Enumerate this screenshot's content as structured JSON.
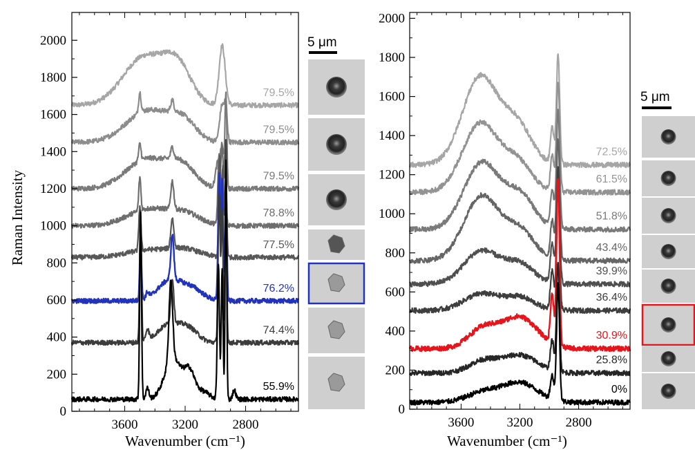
{
  "chart_data": [
    {
      "type": "line",
      "panel": "left",
      "ylabel": "Raman Intensity",
      "xlabel": "Wavenumber (cm⁻¹)",
      "xlim": [
        3950,
        2450
      ],
      "xticks": [
        3600,
        3200,
        2800
      ],
      "ylim": [
        0,
        2150
      ],
      "yticks": [
        0,
        200,
        400,
        600,
        800,
        1000,
        1200,
        1400,
        1600,
        1800,
        2000
      ],
      "grid": false,
      "scale_bar_label": "5 μm",
      "highlight_color": "#2233bb",
      "series": [
        {
          "name": "79.5%",
          "color": "#a6a6a6",
          "baseline": 1650,
          "highlight": false,
          "broad": [
            [
              3470,
              260,
              140
            ],
            [
              3250,
              190,
              90
            ]
          ],
          "peaks": [
            [
              2955,
              320,
              20
            ]
          ]
        },
        {
          "name": "79.5%",
          "color": "#8c8c8c",
          "baseline": 1450,
          "highlight": false,
          "broad": [
            [
              3450,
              170,
              140
            ],
            [
              3220,
              110,
              90
            ]
          ],
          "peaks": [
            [
              3500,
              110,
              8
            ],
            [
              3285,
              60,
              10
            ],
            [
              2955,
              200,
              16
            ],
            [
              2930,
              160,
              9
            ]
          ]
        },
        {
          "name": "79.5%",
          "color": "#7a7a7a",
          "baseline": 1200,
          "highlight": false,
          "broad": [
            [
              3450,
              160,
              140
            ],
            [
              3220,
              110,
              90
            ]
          ],
          "peaks": [
            [
              3500,
              90,
              8
            ],
            [
              3285,
              60,
              10
            ],
            [
              2985,
              130,
              14
            ],
            [
              2955,
              220,
              12
            ],
            [
              2930,
              500,
              6
            ]
          ]
        },
        {
          "name": "78.8%",
          "color": "#6e6e6e",
          "baseline": 1000,
          "highlight": false,
          "broad": [
            [
              3440,
              90,
              140
            ],
            [
              3200,
              60,
              100
            ]
          ],
          "peaks": [
            [
              3500,
              180,
              7
            ],
            [
              3285,
              150,
              10
            ],
            [
              2975,
              380,
              8
            ],
            [
              2955,
              420,
              7
            ],
            [
              2935,
              400,
              6
            ]
          ]
        },
        {
          "name": "77.5%",
          "color": "#585858",
          "baseline": 830,
          "highlight": false,
          "broad": [
            [
              3440,
              40,
              140
            ],
            [
              3200,
              40,
              100
            ]
          ],
          "peaks": [
            [
              3500,
              240,
              7
            ],
            [
              3285,
              160,
              10
            ],
            [
              2970,
              540,
              7
            ],
            [
              2950,
              480,
              6
            ],
            [
              2930,
              440,
              6
            ]
          ]
        },
        {
          "name": "76.2%",
          "color": "#2233bb",
          "baseline": 595,
          "highlight": true,
          "broad": [
            [
              3300,
              110,
              80
            ],
            [
              3150,
              60,
              70
            ]
          ],
          "peaks": [
            [
              3495,
              340,
              6
            ],
            [
              3450,
              30,
              10
            ],
            [
              3285,
              240,
              10
            ],
            [
              2975,
              690,
              7
            ],
            [
              2955,
              640,
              6
            ],
            [
              2930,
              650,
              6
            ]
          ]
        },
        {
          "name": "74.4%",
          "color": "#3c3c3c",
          "baseline": 370,
          "highlight": false,
          "broad": [
            [
              3300,
              100,
              80
            ],
            [
              3170,
              60,
              60
            ]
          ],
          "peaks": [
            [
              3495,
              700,
              6
            ],
            [
              3450,
              60,
              10
            ],
            [
              3285,
              240,
              10
            ],
            [
              2975,
              800,
              7
            ],
            [
              2955,
              700,
              6
            ],
            [
              2930,
              1100,
              5
            ]
          ]
        },
        {
          "name": "55.9%",
          "color": "#000000",
          "baseline": 65,
          "highlight": false,
          "broad": [
            [
              3280,
              220,
              55
            ],
            [
              3170,
              140,
              35
            ],
            [
              3080,
              40,
              40
            ]
          ],
          "peaks": [
            [
              3495,
              1010,
              6
            ],
            [
              3450,
              60,
              10
            ],
            [
              3295,
              430,
              12
            ],
            [
              2980,
              720,
              7
            ],
            [
              2955,
              700,
              6
            ],
            [
              2930,
              1300,
              5
            ],
            [
              2875,
              50,
              10
            ]
          ]
        }
      ]
    },
    {
      "type": "line",
      "panel": "right",
      "ylabel": "",
      "xlabel": "Wavenumber (cm⁻¹)",
      "xlim": [
        3950,
        2450
      ],
      "xticks": [
        3600,
        3200,
        2800
      ],
      "ylim": [
        0,
        2030
      ],
      "yticks": [
        0,
        200,
        400,
        600,
        800,
        1000,
        1200,
        1400,
        1600,
        1800,
        2000
      ],
      "grid": false,
      "scale_bar_label": "5 μm",
      "highlight_color": "#e8141c",
      "series": [
        {
          "name": "72.5%",
          "color": "#a6a6a6",
          "baseline": 1250,
          "highlight": false,
          "broad": [
            [
              3470,
              450,
              120
            ],
            [
              3220,
              200,
              100
            ]
          ],
          "peaks": [
            [
              2980,
              180,
              12
            ],
            [
              2940,
              560,
              11
            ]
          ]
        },
        {
          "name": "61.5%",
          "color": "#939393",
          "baseline": 1110,
          "highlight": false,
          "broad": [
            [
              3470,
              350,
              120
            ],
            [
              3220,
              150,
              100
            ]
          ],
          "peaks": [
            [
              2980,
              180,
              12
            ],
            [
              2940,
              560,
              11
            ]
          ]
        },
        {
          "name": "51.8%",
          "color": "#7a7a7a",
          "baseline": 920,
          "highlight": false,
          "broad": [
            [
              3460,
              340,
              120
            ],
            [
              3200,
              170,
              100
            ]
          ],
          "peaks": [
            [
              2980,
              190,
              12
            ],
            [
              2940,
              600,
              11
            ]
          ]
        },
        {
          "name": "43.4%",
          "color": "#656565",
          "baseline": 760,
          "highlight": false,
          "broad": [
            [
              3460,
              330,
              120
            ],
            [
              3200,
              150,
              100
            ]
          ],
          "peaks": [
            [
              2980,
              200,
              12
            ],
            [
              2940,
              620,
              11
            ]
          ]
        },
        {
          "name": "39.9%",
          "color": "#4f4f4f",
          "baseline": 640,
          "highlight": false,
          "broad": [
            [
              3460,
              170,
              120
            ],
            [
              3200,
              100,
              100
            ]
          ],
          "peaks": [
            [
              2980,
              200,
              12
            ],
            [
              2940,
              600,
              11
            ]
          ]
        },
        {
          "name": "36.4%",
          "color": "#3e3e3e",
          "baseline": 505,
          "highlight": false,
          "broad": [
            [
              3460,
              85,
              120
            ],
            [
              3200,
              65,
              100
            ]
          ],
          "peaks": [
            [
              2980,
              200,
              12
            ],
            [
              2940,
              720,
              10
            ]
          ]
        },
        {
          "name": "30.9%",
          "color": "#e8141c",
          "baseline": 310,
          "highlight": true,
          "broad": [
            [
              3450,
              100,
              100
            ],
            [
              3200,
              160,
              120
            ]
          ],
          "peaks": [
            [
              2980,
              250,
              12
            ],
            [
              2940,
              860,
              10
            ]
          ]
        },
        {
          "name": "25.8%",
          "color": "#262626",
          "baseline": 185,
          "highlight": false,
          "broad": [
            [
              3450,
              60,
              100
            ],
            [
              3200,
              90,
              120
            ]
          ],
          "peaks": [
            [
              2980,
              150,
              12
            ],
            [
              2940,
              560,
              10
            ]
          ]
        },
        {
          "name": "0%",
          "color": "#000000",
          "baseline": 35,
          "highlight": false,
          "broad": [
            [
              3450,
              50,
              110
            ],
            [
              3200,
              100,
              120
            ]
          ],
          "peaks": [
            [
              2980,
              120,
              12
            ],
            [
              2940,
              600,
              10
            ]
          ]
        }
      ]
    }
  ]
}
